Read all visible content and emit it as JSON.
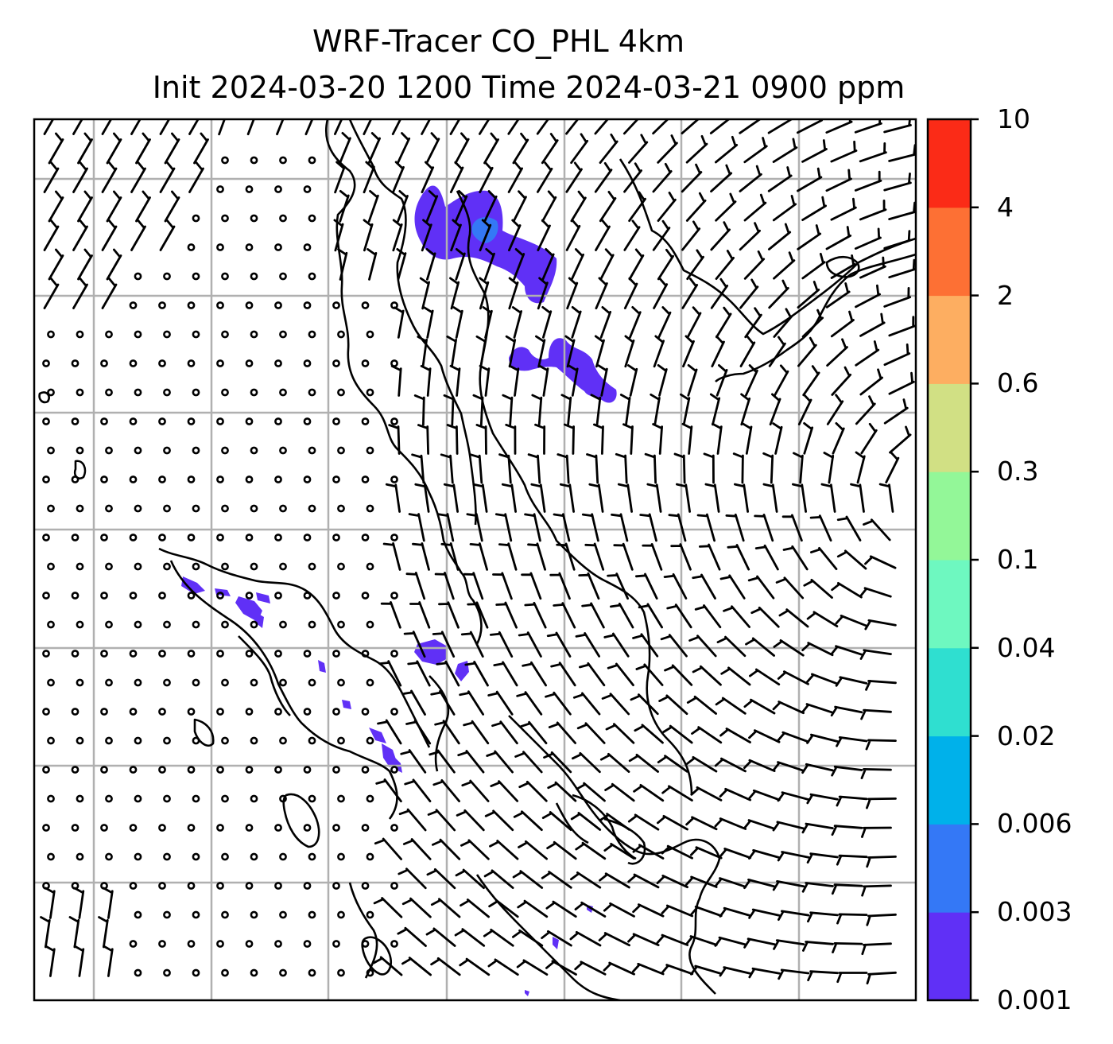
{
  "title": {
    "line1": "WRF-Tracer CO_PHL 4km",
    "line2": "Init 2024-03-20 1200 Time 2024-03-21 0900 ppm"
  },
  "colorbar": {
    "levels": [
      "0.001",
      "0.003",
      "0.006",
      "0.02",
      "0.04",
      "0.1",
      "0.3",
      "0.6",
      "2",
      "4",
      "10"
    ],
    "colors": [
      "#6030f6",
      "#3478f6",
      "#00b1ea",
      "#2fdfd0",
      "#6ef8c0",
      "#93f798",
      "#d1e084",
      "#fdae61",
      "#fd7034",
      "#fb2b17"
    ]
  },
  "map": {
    "gridline_color": "#b0b0b0",
    "coastline_color": "#000000",
    "wind_barbs": "wind barbs and calm circles",
    "plume_color": "#6030f6",
    "plume_core_color": "#3478f6"
  }
}
